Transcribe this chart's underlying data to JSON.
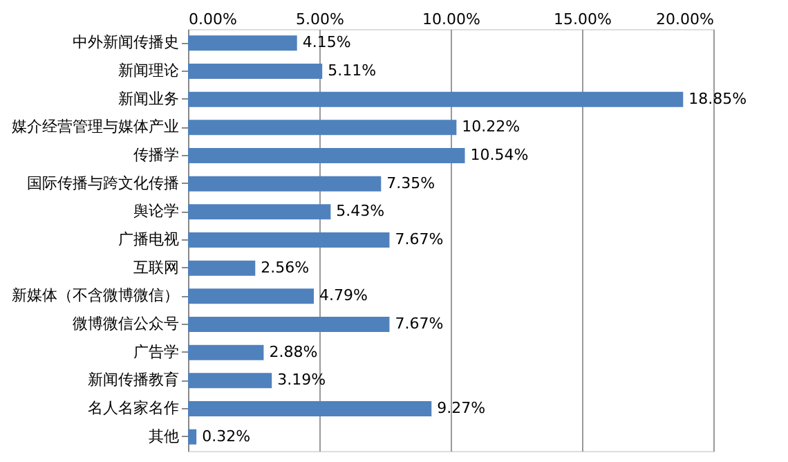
{
  "chart_data": {
    "type": "bar",
    "orientation": "horizontal",
    "categories": [
      "中外新闻传播史",
      "新闻理论",
      "新闻业务",
      "媒介经营管理与媒体产业",
      "传播学",
      "国际传播与跨文化传播",
      "舆论学",
      "广播电视",
      "互联网",
      "新媒体（不含微博微信）",
      "微博微信公众号",
      "广告学",
      "新闻传播教育",
      "名人名家名作",
      "其他"
    ],
    "values": [
      4.15,
      5.11,
      18.85,
      10.22,
      10.54,
      7.35,
      5.43,
      7.67,
      2.56,
      4.79,
      7.67,
      2.88,
      3.19,
      9.27,
      0.32
    ],
    "value_labels": [
      "4.15%",
      "5.11%",
      "18.85%",
      "10.22%",
      "10.54%",
      "7.35%",
      "5.43%",
      "7.67%",
      "2.56%",
      "4.79%",
      "7.67%",
      "2.88%",
      "3.19%",
      "9.27%",
      "0.32%"
    ],
    "color": "#4f81bd",
    "xlim": [
      0,
      20
    ],
    "xticks": [
      {
        "value": 0,
        "label": "0.00%"
      },
      {
        "value": 5,
        "label": "5.00%"
      },
      {
        "value": 10,
        "label": "10.00%"
      },
      {
        "value": 15,
        "label": "15.00%"
      },
      {
        "value": 20,
        "label": "20.00%"
      }
    ],
    "grid": "x"
  }
}
